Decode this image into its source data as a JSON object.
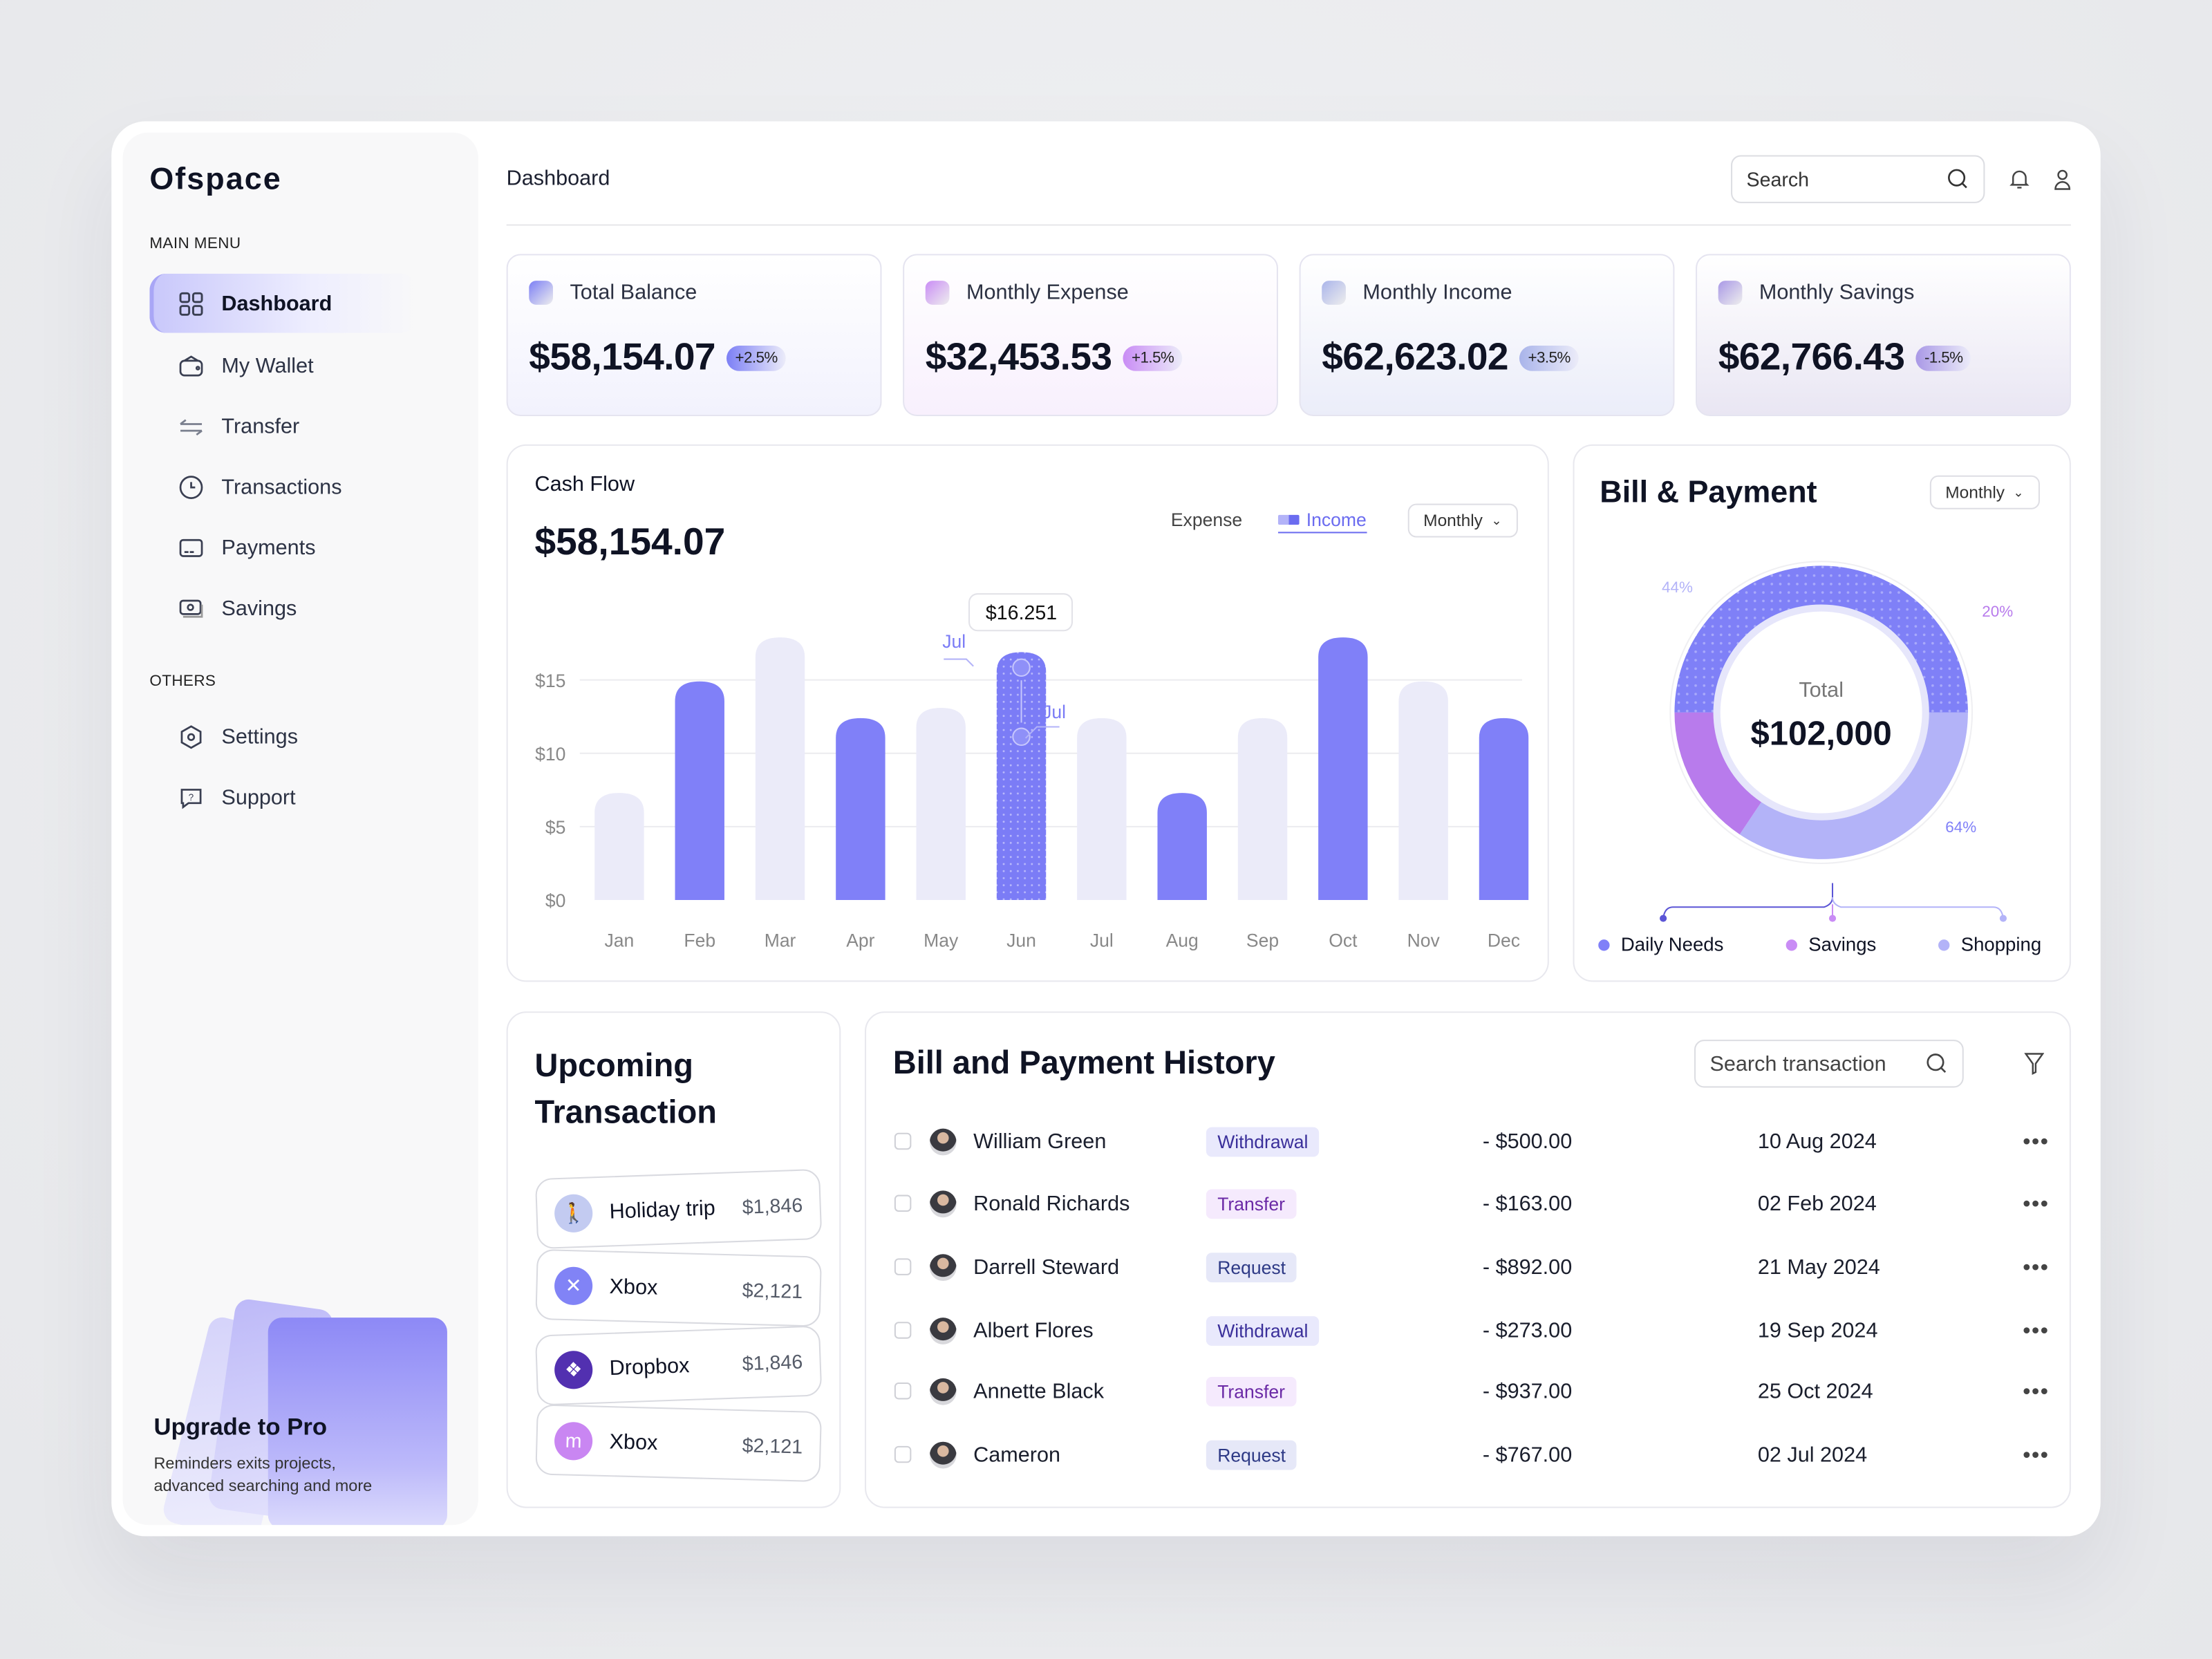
{
  "app": {
    "name": "Ofspace"
  },
  "sidebar": {
    "main_menu_label": "MAIN MENU",
    "others_label": "OTHERS",
    "items": [
      {
        "label": "Dashboard",
        "icon": "grid-icon",
        "active": true
      },
      {
        "label": "My Wallet",
        "icon": "wallet-icon"
      },
      {
        "label": "Transfer",
        "icon": "transfer-icon"
      },
      {
        "label": "Transactions",
        "icon": "clock-icon"
      },
      {
        "label": "Payments",
        "icon": "card-icon"
      },
      {
        "label": "Savings",
        "icon": "savings-icon"
      }
    ],
    "others": [
      {
        "label": "Settings",
        "icon": "settings-icon"
      },
      {
        "label": "Support",
        "icon": "support-icon"
      }
    ],
    "upgrade": {
      "title": "Upgrade to Pro",
      "desc_line1": "Reminders exits projects,",
      "desc_line2": "advanced searching and more"
    }
  },
  "header": {
    "title": "Dashboard",
    "search_placeholder": "Search"
  },
  "stats": [
    {
      "label": "Total Balance",
      "value": "$58,154.07",
      "change": "+2.5%",
      "color": "#7c7ff5"
    },
    {
      "label": "Monthly Expense",
      "value": "$32,453.53",
      "change": "+1.5%",
      "color": "#c98cf5"
    },
    {
      "label": "Monthly Income",
      "value": "$62,623.02",
      "change": "+3.5%",
      "color": "#a9b4ea"
    },
    {
      "label": "Monthly Savings",
      "value": "$62,766.43",
      "change": "-1.5%",
      "color": "#a998e6"
    }
  ],
  "cashflow": {
    "title": "Cash Flow",
    "total": "$58,154.07",
    "legend_expense": "Expense",
    "legend_income": "Income",
    "period": "Monthly",
    "tooltip": "$16.251",
    "marker_label_1": "Jul",
    "marker_label_2": "Jul"
  },
  "chart_data": {
    "type": "bar",
    "categories": [
      "Jan",
      "Feb",
      "Mar",
      "Apr",
      "May",
      "Jun",
      "Jul",
      "Aug",
      "Sep",
      "Oct",
      "Nov",
      "Dec"
    ],
    "values": [
      7.3,
      14.9,
      17.9,
      12.4,
      13.1,
      16.9,
      12.4,
      7.3,
      12.4,
      17.9,
      14.9,
      12.4
    ],
    "series_of_bar": [
      "Expense",
      "Income",
      "Expense",
      "Income",
      "Expense",
      "Income",
      "Expense",
      "Income",
      "Expense",
      "Income",
      "Expense",
      "Income"
    ],
    "highlighted": "Jun",
    "yticks": [
      "$0",
      "$5",
      "$10",
      "$15"
    ],
    "ytick_values": [
      0,
      5,
      10,
      15
    ],
    "ylim": [
      0,
      20
    ],
    "grid": true,
    "colors": {
      "Income": "#8080f8",
      "Expense": "#ebebf9"
    }
  },
  "bill": {
    "title": "Bill & Payment",
    "period": "Monthly",
    "center_label": "Total",
    "center_value": "$102,000",
    "segments": [
      {
        "name": "Shopping",
        "percent": 44,
        "label": "44%",
        "color": "#b3b3f8"
      },
      {
        "name": "Savings",
        "percent": 20,
        "label": "20%",
        "color": "#b87bec"
      },
      {
        "name": "Daily Needs",
        "percent": 64,
        "label": "64%",
        "color": "#8080f8"
      }
    ],
    "legend": [
      "Daily Needs",
      "Savings",
      "Shopping"
    ]
  },
  "upcoming": {
    "title_line1": "Upcoming",
    "title_line2": "Transaction",
    "items": [
      {
        "name": "Holiday trip",
        "amount": "$1,846",
        "icon": "traveler-icon",
        "color": "#c3cbf1"
      },
      {
        "name": "Xbox",
        "amount": "$2,121",
        "icon": "xbox-icon",
        "color": "#8183f6"
      },
      {
        "name": "Dropbox",
        "amount": "$1,846",
        "icon": "dropbox-icon",
        "color": "#5230b0"
      },
      {
        "name": "Xbox",
        "amount": "$2,121",
        "icon": "mcdonalds-icon",
        "color": "#c986f2"
      }
    ]
  },
  "history": {
    "title": "Bill and Payment History",
    "search_placeholder": "Search transaction",
    "rows": [
      {
        "name": "William Green",
        "type": "Withdrawal",
        "amount": "- $500.00",
        "date": "10 Aug 2024"
      },
      {
        "name": "Ronald Richards",
        "type": "Transfer",
        "amount": "- $163.00",
        "date": "02 Feb 2024"
      },
      {
        "name": "Darrell Steward",
        "type": "Request",
        "amount": "- $892.00",
        "date": "21 May 2024"
      },
      {
        "name": "Albert Flores",
        "type": "Withdrawal",
        "amount": "- $273.00",
        "date": "19 Sep 2024"
      },
      {
        "name": "Annette Black",
        "type": "Transfer",
        "amount": "- $937.00",
        "date": "25 Oct 2024"
      },
      {
        "name": "Cameron",
        "type": "Request",
        "amount": "- $767.00",
        "date": "02 Jul 2024"
      }
    ],
    "tag_colors": {
      "Withdrawal": [
        "#e9e9fc",
        "#3a2f9a"
      ],
      "Transfer": [
        "#f5eafd",
        "#6b2aa6"
      ],
      "Request": [
        "#e6e8f8",
        "#2e3a86"
      ]
    }
  }
}
